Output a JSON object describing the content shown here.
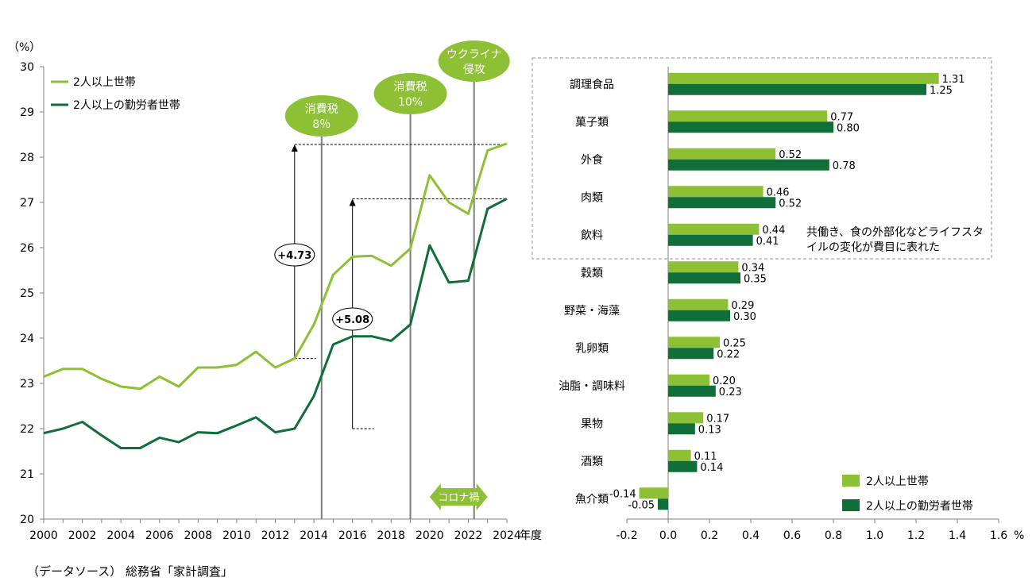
{
  "source_note": "（データソース） 総務省「家計調査」",
  "colors": {
    "light_green": "#8dc034",
    "dark_green": "#0f6e3a",
    "bubble_green": "#8dc034",
    "axis": "#7f7f7f",
    "dashed_box": "#a6a6a6"
  },
  "chart_data": [
    {
      "type": "line",
      "unit_label": "（%）",
      "x_axis_label": "年度",
      "x_ticks": [
        "2000",
        "2002",
        "2004",
        "2006",
        "2008",
        "2010",
        "2012",
        "2014",
        "2016",
        "2018",
        "2020",
        "2022",
        "2024"
      ],
      "y_ticks": [
        "20",
        "21",
        "22",
        "23",
        "24",
        "25",
        "26",
        "27",
        "28",
        "29",
        "30"
      ],
      "xlim": [
        2000,
        2024
      ],
      "ylim": [
        20,
        30
      ],
      "legend_position": "top-left",
      "series": [
        {
          "name": "2人以上世帯",
          "color": "#8dc034",
          "x": [
            2000,
            2001,
            2002,
            2003,
            2004,
            2005,
            2006,
            2007,
            2008,
            2009,
            2010,
            2011,
            2012,
            2013,
            2014,
            2015,
            2016,
            2017,
            2018,
            2019,
            2020,
            2021,
            2022,
            2023,
            2024
          ],
          "y": [
            23.15,
            23.32,
            23.32,
            23.1,
            22.93,
            22.88,
            23.15,
            22.93,
            23.35,
            23.35,
            23.41,
            23.7,
            23.35,
            23.55,
            24.3,
            25.4,
            25.8,
            25.82,
            25.6,
            25.98,
            27.6,
            27.0,
            26.75,
            28.15,
            28.3
          ]
        },
        {
          "name": "2人以上の勤労者世帯",
          "color": "#0f6e3a",
          "x": [
            2000,
            2001,
            2002,
            2003,
            2004,
            2005,
            2006,
            2007,
            2008,
            2009,
            2010,
            2011,
            2012,
            2013,
            2014,
            2015,
            2016,
            2017,
            2018,
            2019,
            2020,
            2021,
            2022,
            2023,
            2024
          ],
          "y": [
            21.9,
            22.0,
            22.15,
            21.85,
            21.57,
            21.57,
            21.8,
            21.7,
            21.92,
            21.9,
            22.07,
            22.25,
            21.92,
            22.0,
            22.72,
            23.86,
            24.04,
            24.04,
            23.94,
            24.3,
            26.05,
            25.23,
            25.27,
            26.86,
            27.08
          ]
        }
      ],
      "events": [
        {
          "id": "tax8",
          "label_lines": [
            "消費税",
            "8％"
          ],
          "x": 2014.4
        },
        {
          "id": "tax10",
          "label_lines": [
            "消費税",
            "10%"
          ],
          "x": 2019
        },
        {
          "id": "ukraine",
          "label_lines": [
            "ウクライナ",
            "侵攻"
          ],
          "x": 2022.3
        }
      ],
      "annotations": [
        {
          "id": "diff1",
          "text": "+4.73",
          "x": 2013,
          "y_from": 23.55,
          "y_to": 28.28
        },
        {
          "id": "diff2",
          "text": "+5.08",
          "x": 2016,
          "y_from": 22.0,
          "y_to": 27.08
        }
      ],
      "covid_label": "コロナ禍",
      "covid_range": [
        2020,
        2023
      ]
    },
    {
      "type": "bar",
      "orientation": "horizontal",
      "unit_label": "%",
      "categories": [
        "調理食品",
        "菓子類",
        "外食",
        "肉類",
        "飲料",
        "穀類",
        "野菜・海藻",
        "乳卵類",
        "油脂・調味料",
        "果物",
        "酒類",
        "魚介類"
      ],
      "xlim": [
        -0.2,
        1.6
      ],
      "x_ticks": [
        "-0.2",
        "0.0",
        "0.2",
        "0.4",
        "0.6",
        "0.8",
        "1.0",
        "1.2",
        "1.4",
        "1.6"
      ],
      "legend_position": "bottom-right",
      "series": [
        {
          "name": "2人以上世帯",
          "color": "#8dc034",
          "values": [
            1.31,
            0.77,
            0.52,
            0.46,
            0.44,
            0.34,
            0.29,
            0.25,
            0.2,
            0.17,
            0.11,
            -0.14
          ],
          "labels": [
            "1.31",
            "0.77",
            "0.52",
            "0.46",
            "0.44",
            "0.34",
            "0.29",
            "0.25",
            "0.20",
            "0.17",
            "0.11",
            "-0.14"
          ]
        },
        {
          "name": "2人以上の勤労者世帯",
          "color": "#0f6e3a",
          "values": [
            1.25,
            0.8,
            0.78,
            0.52,
            0.41,
            0.35,
            0.3,
            0.22,
            0.23,
            0.13,
            0.14,
            -0.05
          ],
          "labels": [
            "1.25",
            "0.80",
            "0.78",
            "0.52",
            "0.41",
            "0.35",
            "0.30",
            "0.22",
            "0.23",
            "0.13",
            "0.14",
            "-0.05"
          ]
        }
      ],
      "highlight_note": [
        "共働き、食の外部化などライフスタ",
        "イルの変化が費目に表れた"
      ]
    }
  ]
}
